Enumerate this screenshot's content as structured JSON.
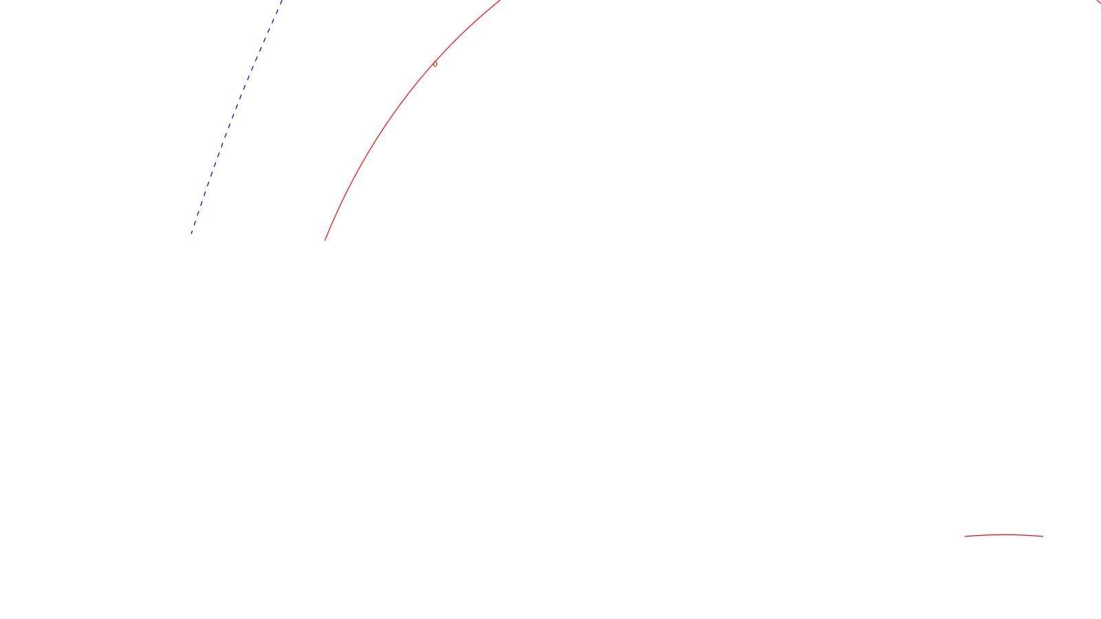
{
  "drawing": {
    "curve_label": "0",
    "colors": {
      "background": "#ffffff",
      "solid_curve": "#ff0000",
      "dashed_curve": "#0000ff"
    }
  }
}
